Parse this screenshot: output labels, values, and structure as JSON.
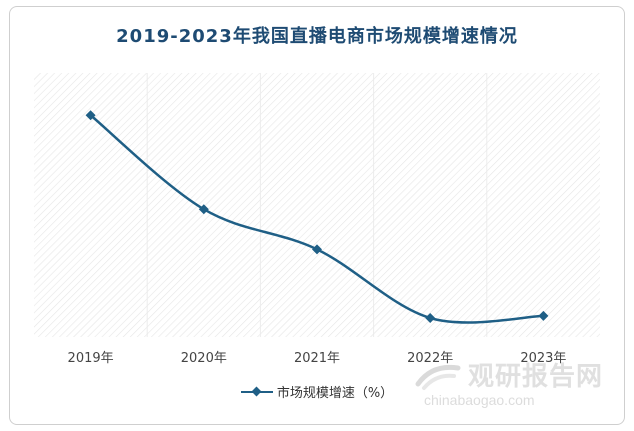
{
  "chart_data": {
    "type": "line",
    "title": "2019-2023年我国直播电商市场规模增速情况",
    "categories": [
      "2019年",
      "2020年",
      "2021年",
      "2022年",
      "2023年"
    ],
    "series": [
      {
        "name": "市场规模增速（%）",
        "values": [
          210,
          121,
          83,
          18,
          20
        ]
      }
    ],
    "ylim": [
      0,
      250
    ],
    "grid": "hatched background with vertical bands",
    "legend": "bottom-center",
    "color": "#1f5f86"
  },
  "watermark": {
    "brand": "观研报告网",
    "url": "chinabaogao.com"
  }
}
